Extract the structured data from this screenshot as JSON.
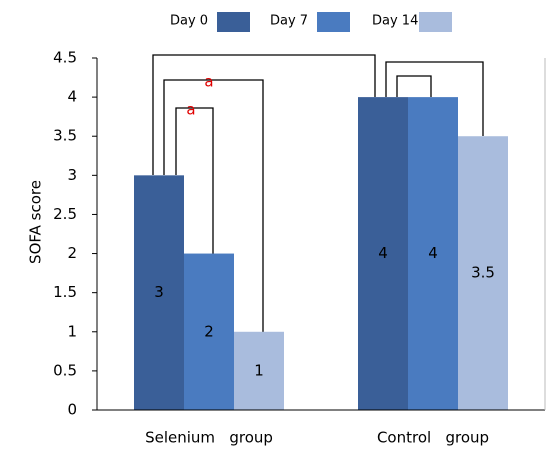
{
  "chart_data": {
    "type": "bar",
    "y_label": "SOFA score",
    "categories": [
      "Selenium   group",
      "Control   group"
    ],
    "series": [
      {
        "name": "Day 0",
        "color": "#3a5f98",
        "values": [
          3,
          4
        ]
      },
      {
        "name": "Day 7",
        "color": "#4a7bc0",
        "values": [
          2,
          4
        ]
      },
      {
        "name": "Day 14",
        "color": "#a9bcdd",
        "values": [
          1,
          3.5
        ]
      }
    ],
    "ylim": [
      0,
      4.5
    ],
    "yticks": [
      0,
      0.5,
      1,
      1.5,
      2,
      2.5,
      3,
      3.5,
      4,
      4.5
    ],
    "annotations": [
      "a",
      "a"
    ],
    "legend": "top"
  }
}
